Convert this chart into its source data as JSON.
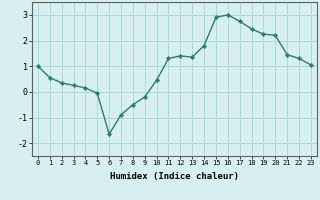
{
  "x": [
    0,
    1,
    2,
    3,
    4,
    5,
    6,
    7,
    8,
    9,
    10,
    11,
    12,
    13,
    14,
    15,
    16,
    17,
    18,
    19,
    20,
    21,
    22,
    23
  ],
  "y": [
    1.0,
    0.55,
    0.35,
    0.25,
    0.15,
    -0.05,
    -1.65,
    -0.9,
    -0.5,
    -0.2,
    0.45,
    1.3,
    1.4,
    1.35,
    1.8,
    2.9,
    3.0,
    2.75,
    2.45,
    2.25,
    2.2,
    1.45,
    1.3,
    1.05
  ],
  "xlabel": "Humidex (Indice chaleur)",
  "bg_color": "#d6efef",
  "line_color": "#2e7d6e",
  "marker_color": "#2e7d6e",
  "grid_color": "#afd8d8",
  "axis_color": "#606060",
  "ylim": [
    -2.5,
    3.5
  ],
  "xlim": [
    -0.5,
    23.5
  ],
  "yticks": [
    -2,
    -1,
    0,
    1,
    2,
    3
  ],
  "xticks": [
    0,
    1,
    2,
    3,
    4,
    5,
    6,
    7,
    8,
    9,
    10,
    11,
    12,
    13,
    14,
    15,
    16,
    17,
    18,
    19,
    20,
    21,
    22,
    23
  ]
}
